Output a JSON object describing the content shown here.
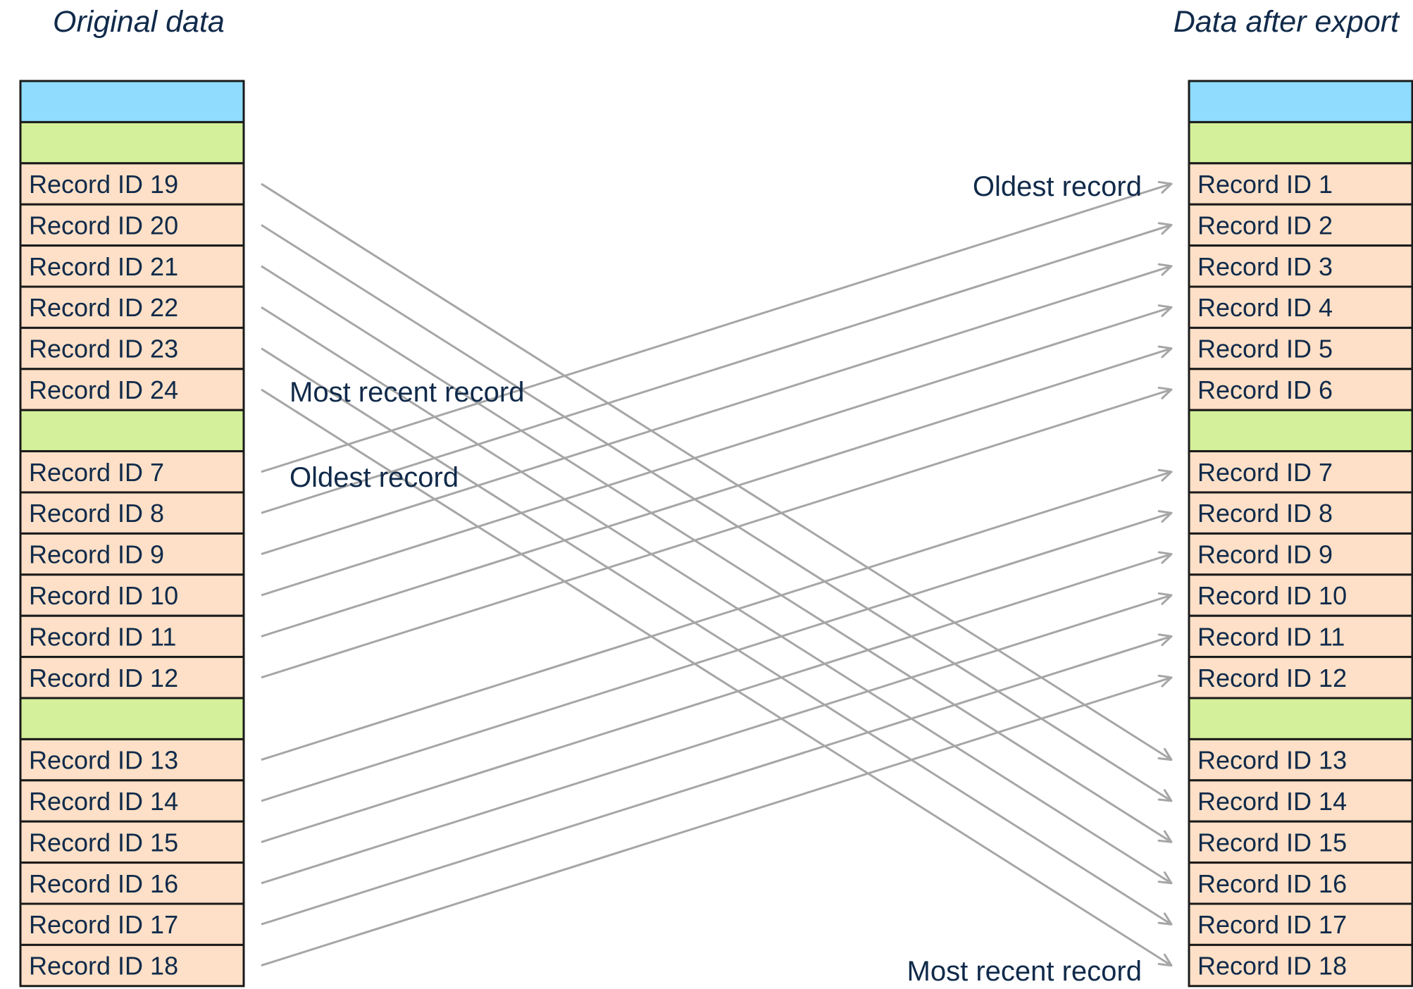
{
  "left_title": "Original data",
  "right_title": "Data after export",
  "colors": {
    "header_block": "#8fdcff",
    "group_separator": "#d4f09a",
    "record_cell": "#fde0c7",
    "arrow": "#a6a6a6",
    "text": "#102a4a"
  },
  "left_column": [
    {
      "kind": "header",
      "label": ""
    },
    {
      "kind": "separator",
      "label": ""
    },
    {
      "kind": "record",
      "label": "Record ID 19"
    },
    {
      "kind": "record",
      "label": "Record ID 20"
    },
    {
      "kind": "record",
      "label": "Record ID 21"
    },
    {
      "kind": "record",
      "label": "Record ID 22"
    },
    {
      "kind": "record",
      "label": "Record ID 23"
    },
    {
      "kind": "record",
      "label": "Record ID 24"
    },
    {
      "kind": "separator",
      "label": ""
    },
    {
      "kind": "record",
      "label": "Record ID 7"
    },
    {
      "kind": "record",
      "label": "Record ID 8"
    },
    {
      "kind": "record",
      "label": "Record ID 9"
    },
    {
      "kind": "record",
      "label": "Record ID 10"
    },
    {
      "kind": "record",
      "label": "Record ID 11"
    },
    {
      "kind": "record",
      "label": "Record ID 12"
    },
    {
      "kind": "separator",
      "label": ""
    },
    {
      "kind": "record",
      "label": "Record ID 13"
    },
    {
      "kind": "record",
      "label": "Record ID 14"
    },
    {
      "kind": "record",
      "label": "Record ID 15"
    },
    {
      "kind": "record",
      "label": "Record ID 16"
    },
    {
      "kind": "record",
      "label": "Record ID 17"
    },
    {
      "kind": "record",
      "label": "Record ID 18"
    }
  ],
  "right_column": [
    {
      "kind": "header",
      "label": ""
    },
    {
      "kind": "separator",
      "label": ""
    },
    {
      "kind": "record",
      "label": "Record ID 1"
    },
    {
      "kind": "record",
      "label": "Record ID 2"
    },
    {
      "kind": "record",
      "label": "Record ID 3"
    },
    {
      "kind": "record",
      "label": "Record ID 4"
    },
    {
      "kind": "record",
      "label": "Record ID 5"
    },
    {
      "kind": "record",
      "label": "Record ID 6"
    },
    {
      "kind": "separator",
      "label": ""
    },
    {
      "kind": "record",
      "label": "Record ID 7"
    },
    {
      "kind": "record",
      "label": "Record ID 8"
    },
    {
      "kind": "record",
      "label": "Record ID 9"
    },
    {
      "kind": "record",
      "label": "Record ID 10"
    },
    {
      "kind": "record",
      "label": "Record ID 11"
    },
    {
      "kind": "record",
      "label": "Record ID 12"
    },
    {
      "kind": "separator",
      "label": ""
    },
    {
      "kind": "record",
      "label": "Record ID 13"
    },
    {
      "kind": "record",
      "label": "Record ID 14"
    },
    {
      "kind": "record",
      "label": "Record ID 15"
    },
    {
      "kind": "record",
      "label": "Record ID 16"
    },
    {
      "kind": "record",
      "label": "Record ID 17"
    },
    {
      "kind": "record",
      "label": "Record ID 18"
    }
  ],
  "mappings": [
    {
      "from": 2,
      "to": 16
    },
    {
      "from": 3,
      "to": 17
    },
    {
      "from": 4,
      "to": 18
    },
    {
      "from": 5,
      "to": 19
    },
    {
      "from": 6,
      "to": 20
    },
    {
      "from": 7,
      "to": 21
    },
    {
      "from": 9,
      "to": 2
    },
    {
      "from": 10,
      "to": 3
    },
    {
      "from": 11,
      "to": 4
    },
    {
      "from": 12,
      "to": 5
    },
    {
      "from": 13,
      "to": 6
    },
    {
      "from": 14,
      "to": 7
    },
    {
      "from": 16,
      "to": 9
    },
    {
      "from": 17,
      "to": 10
    },
    {
      "from": 18,
      "to": 11
    },
    {
      "from": 19,
      "to": 12
    },
    {
      "from": 20,
      "to": 13
    },
    {
      "from": 21,
      "to": 14
    }
  ],
  "annotations": {
    "left_most_recent": "Most recent record",
    "left_oldest": "Oldest record",
    "right_oldest": "Oldest record",
    "right_most_recent": "Most recent record"
  }
}
